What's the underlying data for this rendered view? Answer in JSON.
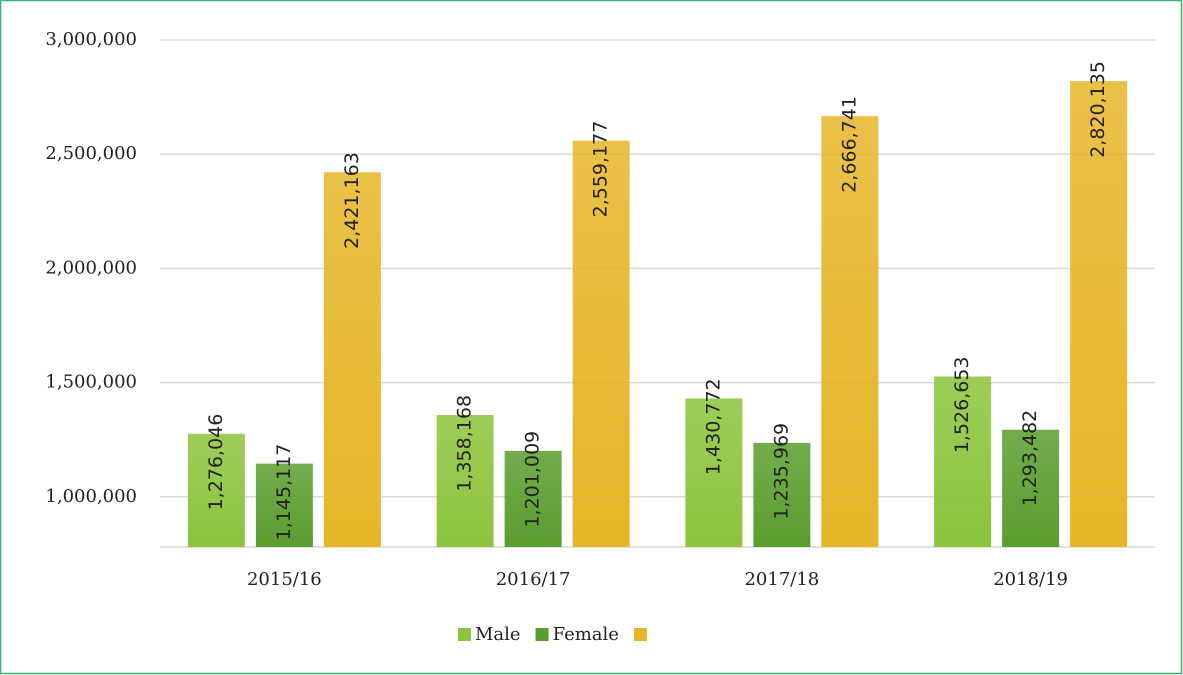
{
  "chart_data": {
    "type": "bar",
    "categories": [
      "2015/16",
      "2016/17",
      "2017/18",
      "2018/19"
    ],
    "series": [
      {
        "name": "Male",
        "color": "#8cc43c",
        "values": [
          1276046,
          1358168,
          1430772,
          1526653
        ],
        "value_labels": [
          "1,276,046",
          "1,358,168",
          "1,430,772",
          "1,526,653"
        ]
      },
      {
        "name": "Female",
        "color": "#5a9e2e",
        "values": [
          1145117,
          1201009,
          1235969,
          1293482
        ],
        "value_labels": [
          "1,145,117",
          "1,201,009",
          "1,235,969",
          "1,293,482"
        ]
      },
      {
        "name": null,
        "color": "#e6b628",
        "values": [
          2421163,
          2559177,
          2666741,
          2820135
        ],
        "value_labels": [
          "2,421,163",
          "2,559,177",
          "2,666,741",
          "2,820,135"
        ]
      }
    ],
    "ylim": [
      780000,
      3000000
    ],
    "yticks": [
      {
        "value": 1000000,
        "label": "1,000,000"
      },
      {
        "value": 1500000,
        "label": "1,500,000"
      },
      {
        "value": 2000000,
        "label": "2,000,000"
      },
      {
        "value": 2500000,
        "label": "2,500,000"
      },
      {
        "value": 3000000,
        "label": "3,000,000"
      }
    ],
    "grid": true,
    "legend": "bottom"
  }
}
